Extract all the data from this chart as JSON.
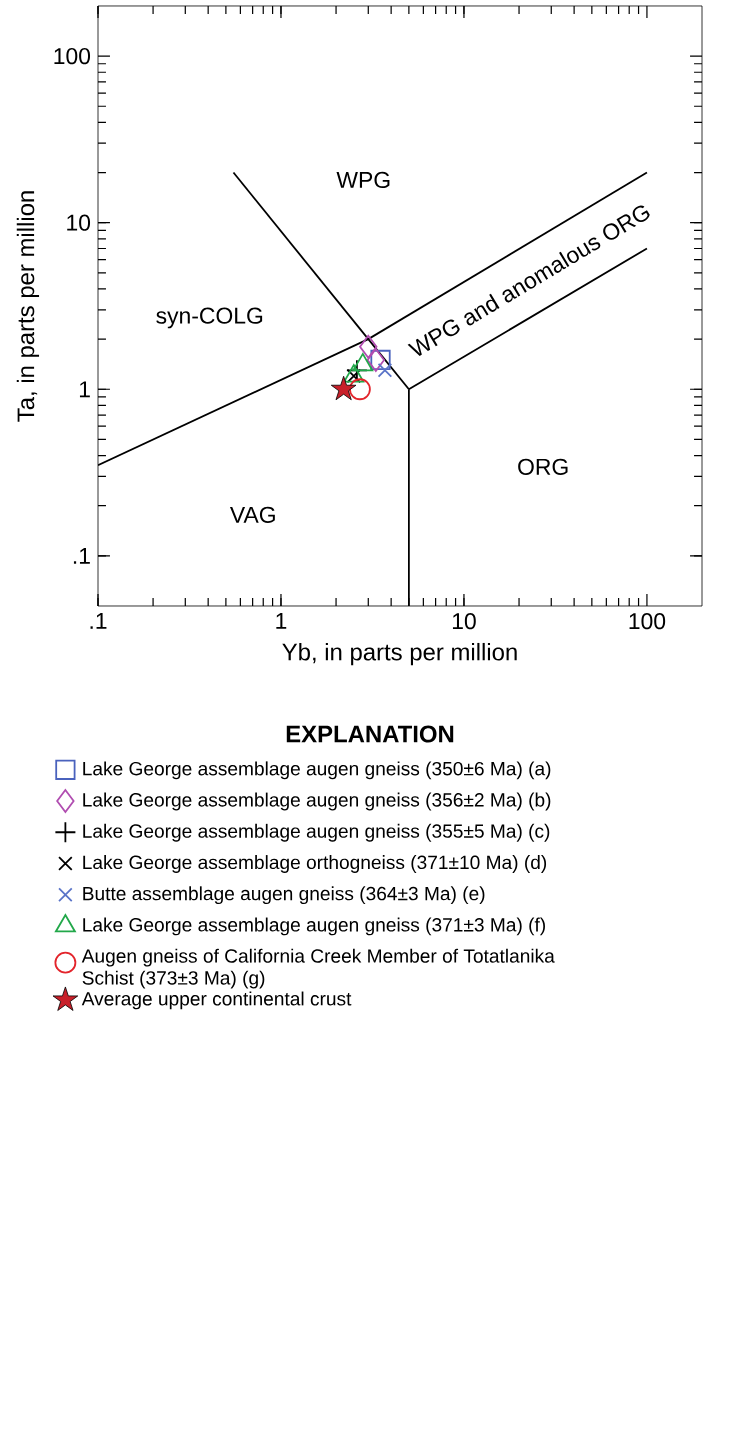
{
  "chart_data": {
    "type": "scatter",
    "xlabel": "Yb, in parts per million",
    "ylabel": "Ta, in parts per million",
    "legend_title": "EXPLANATION",
    "log": "xy",
    "xlim": [
      0.1,
      200
    ],
    "ylim": [
      0.05,
      200
    ],
    "xticks": [
      {
        "value": 0.1,
        "label": ".1"
      },
      1,
      10,
      100
    ],
    "yticks": [
      {
        "value": 0.1,
        "label": ".1"
      },
      1,
      10,
      100
    ],
    "grid": false,
    "legend": "bottom",
    "annotations": [
      "WPG",
      "syn-COLG",
      "VAG",
      "ORG",
      "WPG and anomalous ORG"
    ],
    "series": [
      {
        "type": "line",
        "color": "#000000",
        "marker": "none",
        "x": [
          0.1,
          3
        ],
        "values": [
          0.35,
          2
        ]
      },
      {
        "type": "line",
        "color": "#000000",
        "marker": "none",
        "x": [
          0.55,
          3
        ],
        "values": [
          20,
          2
        ]
      },
      {
        "type": "line",
        "color": "#000000",
        "marker": "none",
        "x": [
          3,
          100
        ],
        "values": [
          2,
          20
        ]
      },
      {
        "type": "line",
        "color": "#000000",
        "marker": "none",
        "x": [
          3,
          5
        ],
        "values": [
          2,
          1
        ]
      },
      {
        "type": "line",
        "color": "#000000",
        "marker": "none",
        "x": [
          5,
          5
        ],
        "values": [
          0.05,
          1
        ]
      },
      {
        "type": "line",
        "color": "#000000",
        "marker": "none",
        "x": [
          5,
          100
        ],
        "values": [
          1,
          7
        ]
      },
      {
        "name": "Lake George assemblage augen gneiss (350±6 Ma) (a)",
        "color": "#4a62bd",
        "marker": "square",
        "x": [
          3.5
        ],
        "values": [
          1.5
        ]
      },
      {
        "name": "Lake George assemblage augen gneiss (356±2 Ma) (b)",
        "color": "#b04db0",
        "marker": "diamond",
        "x": [
          3.0,
          3.3
        ],
        "values": [
          1.8,
          1.5
        ]
      },
      {
        "name": "Lake George assemblage augen gneiss (355±5 Ma) (c)",
        "color": "#000000",
        "marker": "plus",
        "x": [
          2.6
        ],
        "values": [
          1.3
        ]
      },
      {
        "name": "Lake George assemblage orthogneiss (371±10 Ma) (d)",
        "color": "#000000",
        "marker": "cross",
        "x": [
          2.5
        ],
        "values": [
          1.2
        ]
      },
      {
        "name": "Butte assemblage augen gneiss (364±3 Ma) (e)",
        "color": "#5a74c8",
        "marker": "cross",
        "x": [
          3.7
        ],
        "values": [
          1.3
        ]
      },
      {
        "name": "Lake George assemblage augen gneiss (371±3 Ma) (f)",
        "color": "#22a84a",
        "marker": "triangle",
        "x": [
          2.8,
          2.5
        ],
        "values": [
          1.4,
          1.2
        ]
      },
      {
        "name": "Augen gneiss of California Creek Member of Totatlanika Schist (373±3 Ma) (g)",
        "color": "#e3242b",
        "marker": "circle",
        "x": [
          2.7
        ],
        "values": [
          1.0
        ]
      },
      {
        "name": "Average upper continental crust",
        "color": "#c8202a",
        "marker": "star",
        "x": [
          2.2
        ],
        "values": [
          1.0
        ]
      }
    ]
  }
}
